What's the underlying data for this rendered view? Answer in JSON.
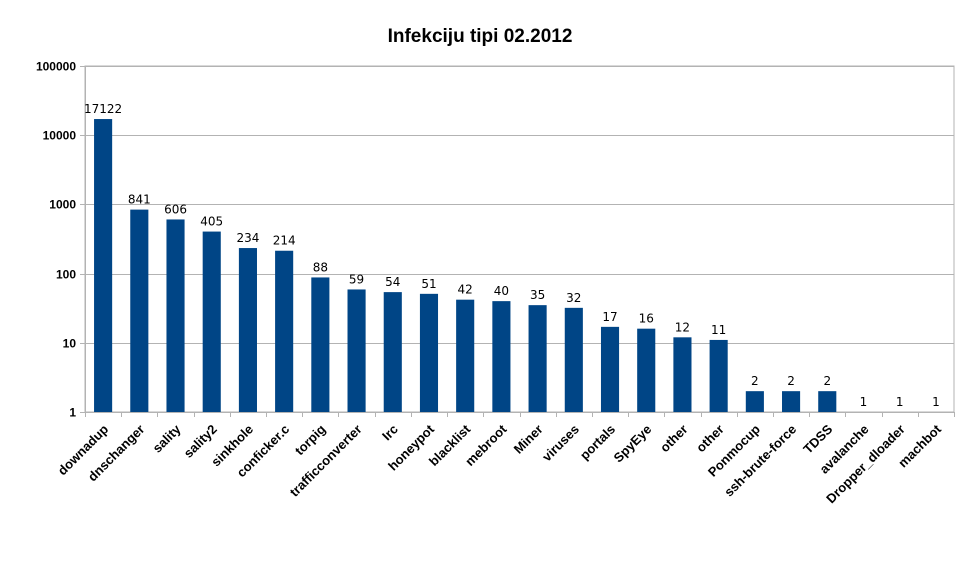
{
  "chart_data": {
    "type": "bar",
    "title": "Infekciju tipi 02.2012",
    "xlabel": "",
    "ylabel": "",
    "yscale": "log",
    "ylim": [
      1,
      100000
    ],
    "yticks": [
      "1",
      "10",
      "100",
      "1000",
      "10000",
      "100000"
    ],
    "grid": true,
    "legend": "none",
    "bar_color": "#004586",
    "categories": [
      "downadup",
      "dnschanger",
      "sality",
      "sality2",
      "sinkhole",
      "conficker.c",
      "torpig",
      "trafficconverter",
      "Irc",
      "honeypot",
      "blacklist",
      "mebroot",
      "Miner",
      "viruses",
      "portals",
      "SpyEye",
      "other",
      "other",
      "Ponmocup",
      "ssh-brute-force",
      "TDSS",
      "avalanche",
      "Dropper_dloader",
      "machbot"
    ],
    "values": [
      17122,
      841,
      606,
      405,
      234,
      214,
      88,
      59,
      54,
      51,
      42,
      40,
      35,
      32,
      17,
      16,
      12,
      11,
      2,
      2,
      2,
      1,
      1,
      1
    ]
  }
}
